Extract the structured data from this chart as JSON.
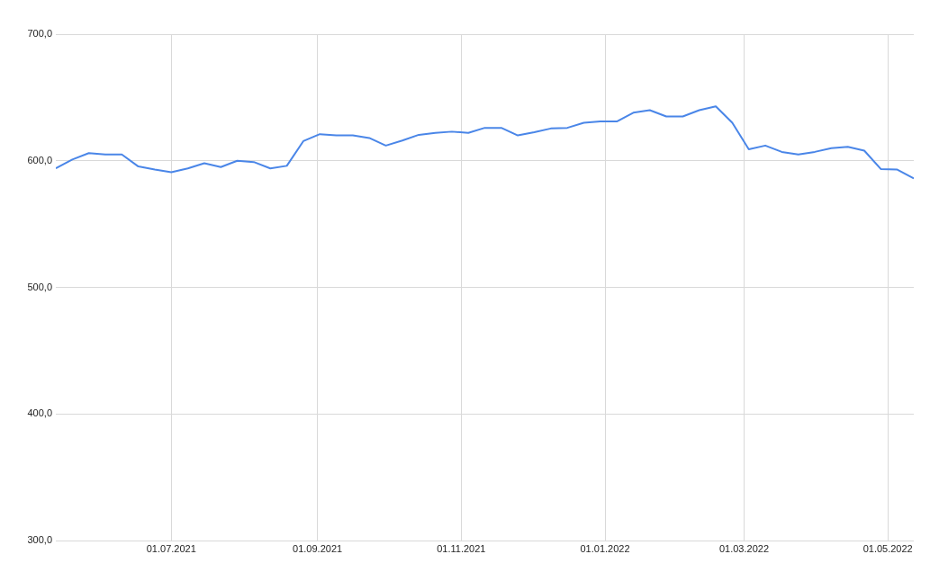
{
  "chart_data": {
    "type": "line",
    "x": [
      "2021-05-13",
      "2021-05-20",
      "2021-05-27",
      "2021-06-03",
      "2021-06-10",
      "2021-06-17",
      "2021-06-24",
      "2021-07-01",
      "2021-07-08",
      "2021-07-15",
      "2021-07-22",
      "2021-07-29",
      "2021-08-05",
      "2021-08-12",
      "2021-08-19",
      "2021-08-26",
      "2021-09-02",
      "2021-09-09",
      "2021-09-16",
      "2021-09-23",
      "2021-09-30",
      "2021-10-07",
      "2021-10-14",
      "2021-10-21",
      "2021-10-28",
      "2021-11-04",
      "2021-11-11",
      "2021-11-18",
      "2021-11-25",
      "2021-12-02",
      "2021-12-09",
      "2021-12-16",
      "2021-12-23",
      "2021-12-30",
      "2022-01-06",
      "2022-01-13",
      "2022-01-20",
      "2022-01-27",
      "2022-02-03",
      "2022-02-10",
      "2022-02-17",
      "2022-02-24",
      "2022-03-03",
      "2022-03-10",
      "2022-03-17",
      "2022-03-24",
      "2022-03-31",
      "2022-04-07",
      "2022-04-14",
      "2022-04-21",
      "2022-04-28",
      "2022-05-05",
      "2022-05-12"
    ],
    "series": [
      {
        "color": "#4a86e8",
        "values": [
          594,
          601,
          606,
          605,
          605,
          595.5,
          593,
          591,
          594,
          598,
          595,
          600,
          599,
          594,
          596,
          615.5,
          621,
          620,
          620,
          618,
          612,
          616,
          620.5,
          622,
          623,
          622,
          626,
          626,
          620,
          622.5,
          625.5,
          626,
          630,
          631,
          631,
          638,
          640,
          635,
          635,
          640,
          643,
          630,
          609,
          612,
          607,
          605,
          607,
          610,
          611,
          608,
          593.5,
          593,
          586
        ]
      }
    ],
    "xlim": [
      "2021-05-13",
      "2022-05-12"
    ],
    "xticks": [
      {
        "value": "2021-07-01",
        "label": "01.07.2021"
      },
      {
        "value": "2021-09-01",
        "label": "01.09.2021"
      },
      {
        "value": "2021-11-01",
        "label": "01.11.2021"
      },
      {
        "value": "2022-01-01",
        "label": "01.01.2022"
      },
      {
        "value": "2022-03-01",
        "label": "01.03.2022"
      },
      {
        "value": "2022-05-01",
        "label": "01.05.2022"
      }
    ],
    "ylim": [
      300,
      700
    ],
    "yticks": [
      {
        "value": 300,
        "label": "300,0"
      },
      {
        "value": 400,
        "label": "400,0"
      },
      {
        "value": 500,
        "label": "500,0"
      },
      {
        "value": 600,
        "label": "600,0"
      },
      {
        "value": 700,
        "label": "700,0"
      }
    ],
    "grid": true,
    "marker": "none",
    "line_style": "solid"
  }
}
